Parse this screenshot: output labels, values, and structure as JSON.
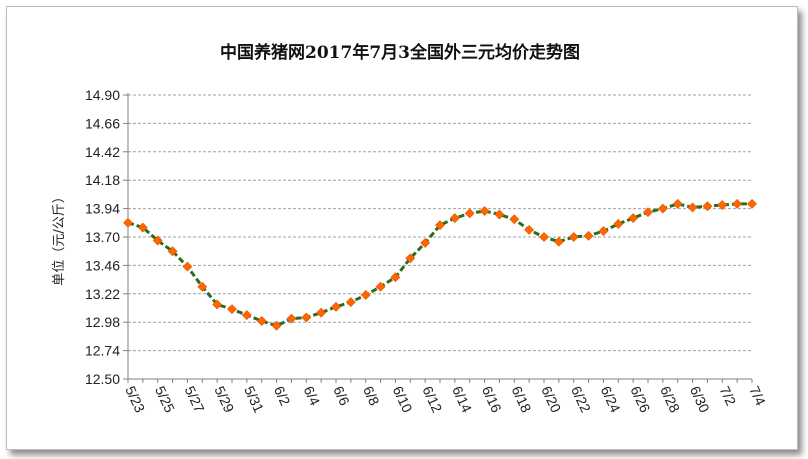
{
  "chart_data": {
    "type": "line",
    "title": "中国养猪网2017年7月3全国外三元均价走势图",
    "ylabel": "单位（元/公斤）",
    "xlabel": "",
    "ylim": [
      12.5,
      14.9
    ],
    "yticks": [
      "12.50",
      "12.74",
      "12.98",
      "13.22",
      "13.46",
      "13.70",
      "13.94",
      "14.18",
      "14.42",
      "14.66",
      "14.90"
    ],
    "x_tick_labels": [
      "5/23",
      "5/25",
      "5/27",
      "5/29",
      "5/31",
      "6/2",
      "6/4",
      "6/6",
      "6/8",
      "6/10",
      "6/12",
      "6/14",
      "6/16",
      "6/18",
      "6/20",
      "6/22",
      "6/24",
      "6/26",
      "6/28",
      "6/30",
      "7/2",
      "7/4"
    ],
    "grid": true,
    "legend": "none",
    "series": [
      {
        "values": [
          13.82,
          13.78,
          13.67,
          13.58,
          13.45,
          13.28,
          13.13,
          13.09,
          13.04,
          12.99,
          12.95,
          13.01,
          13.02,
          13.06,
          13.11,
          13.15,
          13.21,
          13.28,
          13.36,
          13.52,
          13.65,
          13.8,
          13.86,
          13.9,
          13.92,
          13.89,
          13.85,
          13.76,
          13.7,
          13.66,
          13.7,
          13.71,
          13.75,
          13.81,
          13.86,
          13.91,
          13.94,
          13.98,
          13.95,
          13.96,
          13.97,
          13.98,
          13.98
        ]
      }
    ],
    "colors": {
      "line": "#2e6b1f",
      "marker": "#ff6600",
      "grid": "#a0a0a0",
      "axis": "#808080"
    }
  }
}
